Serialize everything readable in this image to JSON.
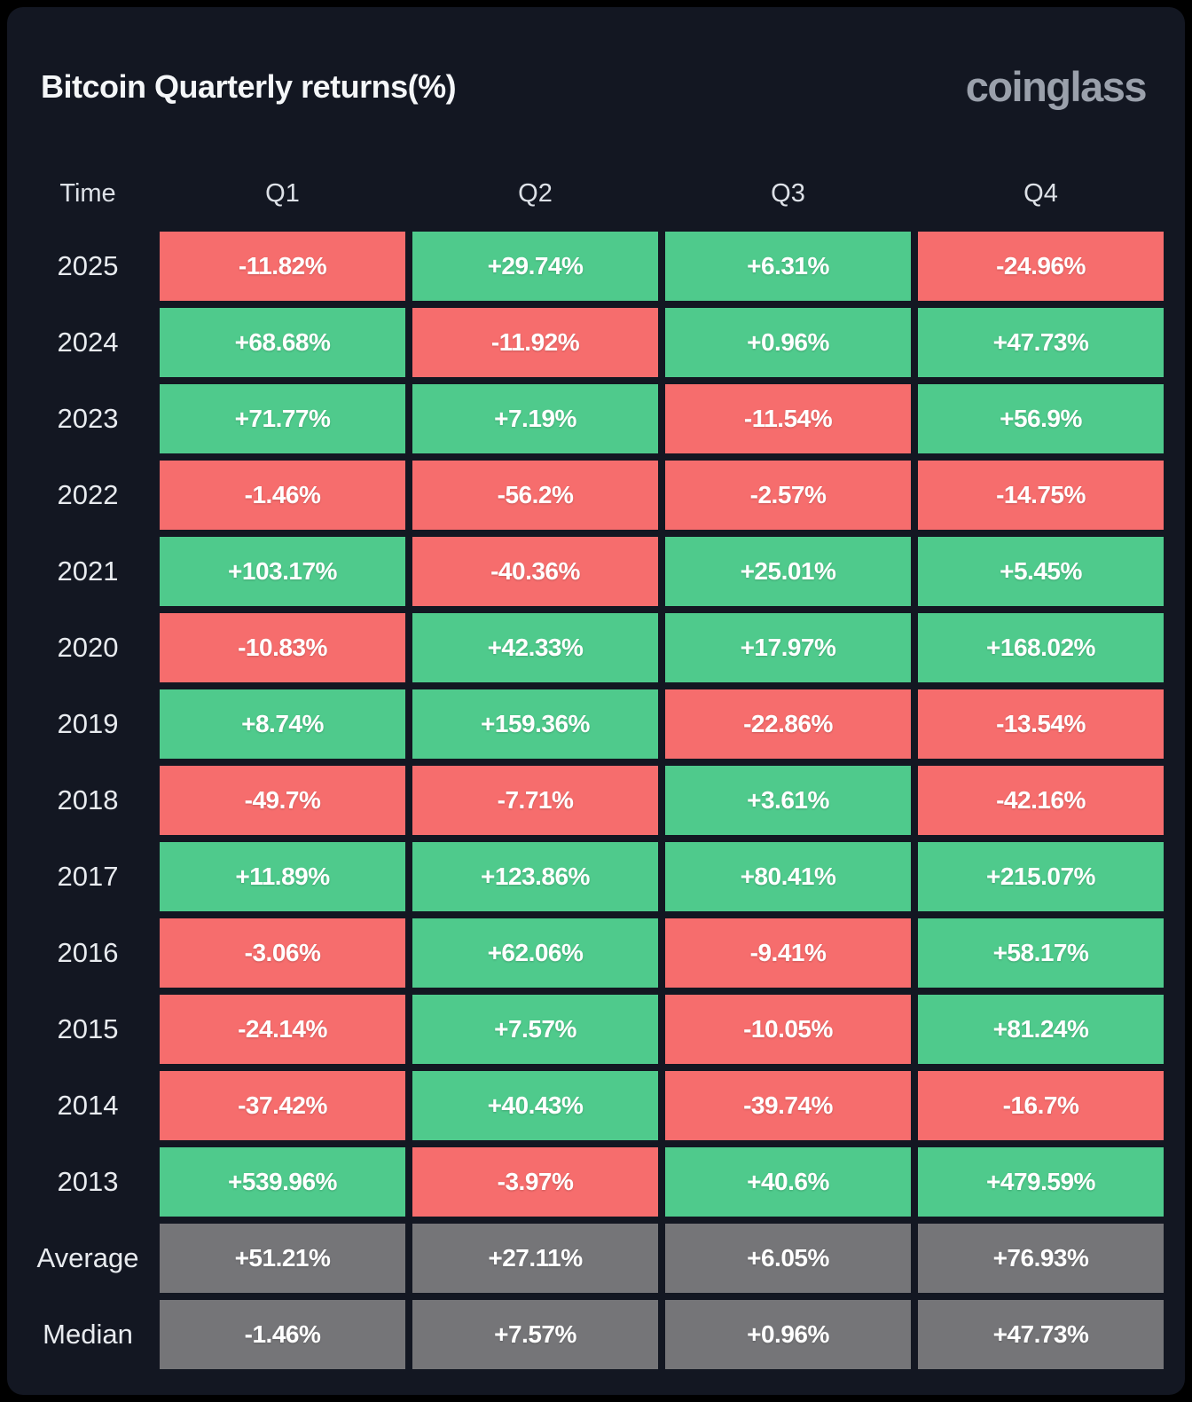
{
  "header": {
    "title": "Bitcoin Quarterly returns(%)",
    "logo_text": "coinglass"
  },
  "chart_data": {
    "type": "table",
    "title": "Bitcoin Quarterly returns(%)",
    "value_unit": "percent",
    "columns": [
      "Time",
      "Q1",
      "Q2",
      "Q3",
      "Q4"
    ],
    "rows": [
      {
        "label": "2025",
        "values": [
          "-11.82%",
          "+29.74%",
          "+6.31%",
          "-24.96%"
        ]
      },
      {
        "label": "2024",
        "values": [
          "+68.68%",
          "-11.92%",
          "+0.96%",
          "+47.73%"
        ]
      },
      {
        "label": "2023",
        "values": [
          "+71.77%",
          "+7.19%",
          "-11.54%",
          "+56.9%"
        ]
      },
      {
        "label": "2022",
        "values": [
          "-1.46%",
          "-56.2%",
          "-2.57%",
          "-14.75%"
        ]
      },
      {
        "label": "2021",
        "values": [
          "+103.17%",
          "-40.36%",
          "+25.01%",
          "+5.45%"
        ]
      },
      {
        "label": "2020",
        "values": [
          "-10.83%",
          "+42.33%",
          "+17.97%",
          "+168.02%"
        ]
      },
      {
        "label": "2019",
        "values": [
          "+8.74%",
          "+159.36%",
          "-22.86%",
          "-13.54%"
        ]
      },
      {
        "label": "2018",
        "values": [
          "-49.7%",
          "-7.71%",
          "+3.61%",
          "-42.16%"
        ]
      },
      {
        "label": "2017",
        "values": [
          "+11.89%",
          "+123.86%",
          "+80.41%",
          "+215.07%"
        ]
      },
      {
        "label": "2016",
        "values": [
          "-3.06%",
          "+62.06%",
          "-9.41%",
          "+58.17%"
        ]
      },
      {
        "label": "2015",
        "values": [
          "-24.14%",
          "+7.57%",
          "-10.05%",
          "+81.24%"
        ]
      },
      {
        "label": "2014",
        "values": [
          "-37.42%",
          "+40.43%",
          "-39.74%",
          "-16.7%"
        ]
      },
      {
        "label": "2013",
        "values": [
          "+539.96%",
          "-3.97%",
          "+40.6%",
          "+479.59%"
        ]
      }
    ],
    "summary_rows": [
      {
        "label": "Average",
        "values": [
          "+51.21%",
          "+27.11%",
          "+6.05%",
          "+76.93%"
        ]
      },
      {
        "label": "Median",
        "values": [
          "-1.46%",
          "+7.57%",
          "+0.96%",
          "+47.73%"
        ]
      }
    ],
    "legend": "green = positive quarterly return, red = negative quarterly return, gray = summary statistic"
  },
  "colors": {
    "positive_cell": "#4fca8c",
    "negative_cell": "#f66d6d",
    "summary_cell": "#757578",
    "card_background": "#131722",
    "cell_text": "#ffffff",
    "logo_text": "#9aa0ab"
  }
}
